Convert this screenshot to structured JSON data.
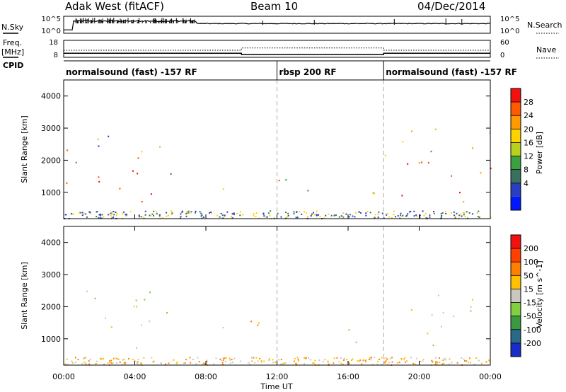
{
  "header": {
    "station": "Adak West (fitACF)",
    "beam": "Beam 10",
    "date": "04/Dec/2014"
  },
  "left_labels": {
    "nsky": "N.Sky",
    "freq_line1": "Freq.",
    "freq_line2": "[MHz]",
    "cpid": "CPID"
  },
  "right_labels": {
    "nsearch": "N.Search",
    "nave": "Nave"
  },
  "noise_panel": {
    "ticks_left": [
      "10^5",
      "10^0"
    ],
    "ticks_right": [
      "10^5",
      "10^0"
    ]
  },
  "freq_panel": {
    "ticks_left": [
      "18",
      "8"
    ],
    "ticks_right": [
      "60",
      "0"
    ],
    "freq_segments": [
      {
        "start_hr": 0.0,
        "end_hr": 10.0,
        "freq_mhz": 10.4
      },
      {
        "start_hr": 10.0,
        "end_hr": 18.0,
        "freq_mhz": 9.6
      },
      {
        "start_hr": 18.0,
        "end_hr": 24.0,
        "freq_mhz": 10.4
      }
    ],
    "nave_segments": [
      {
        "start_hr": 0.0,
        "end_hr": 10.0,
        "nave": 25
      },
      {
        "start_hr": 10.0,
        "end_hr": 18.0,
        "nave": 33
      },
      {
        "start_hr": 18.0,
        "end_hr": 24.0,
        "nave": 25
      }
    ]
  },
  "cpid_segments": [
    {
      "start_hr": 0.0,
      "end_hr": 12.0,
      "label": "normalsound (fast) -157 RF"
    },
    {
      "start_hr": 12.0,
      "end_hr": 18.0,
      "label": "rbsp 200 RF"
    },
    {
      "start_hr": 18.0,
      "end_hr": 24.0,
      "label": "normalsound (fast) -157 RF"
    }
  ],
  "x_axis": {
    "label": "Time UT",
    "ticks": [
      "00:00",
      "04:00",
      "08:00",
      "12:00",
      "16:00",
      "20:00",
      "00:00"
    ],
    "tick_hours": [
      0,
      4,
      8,
      12,
      16,
      20,
      24
    ],
    "range_hr": [
      0,
      24
    ]
  },
  "power_panel": {
    "ylabel": "Slant Range [km]",
    "yticks": [
      "4000",
      "3000",
      "2000",
      "1000"
    ],
    "ytick_values": [
      4000,
      3000,
      2000,
      1000
    ],
    "yrange_km": [
      180,
      4500
    ],
    "colorbar_label": "Power [dB]",
    "colorbar_ticks": [
      "28",
      "24",
      "20",
      "16",
      "12",
      "8",
      "4"
    ],
    "colorbar_colors": [
      "#0018ff",
      "#2a3fbf",
      "#3a7060",
      "#3aa040",
      "#b8d020",
      "#ffd200",
      "#ff9a00",
      "#ff5a00",
      "#f21010"
    ]
  },
  "velocity_panel": {
    "ylabel": "Slant Range [km]",
    "yticks": [
      "4000",
      "3000",
      "2000",
      "1000"
    ],
    "ytick_values": [
      4000,
      3000,
      2000,
      1000
    ],
    "yrange_km": [
      180,
      4500
    ],
    "colorbar_label": "Velocity [m s^-1]",
    "colorbar_ticks": [
      "200",
      "100",
      "50",
      "15",
      "-15",
      "-50",
      "-100",
      "-200"
    ],
    "colorbar_colors": [
      "#1a2cc8",
      "#2a6a88",
      "#3a9a40",
      "#80d040",
      "#c8c8c0",
      "#ffc000",
      "#ff8000",
      "#ff4000",
      "#f21010"
    ]
  },
  "chart_data": {
    "type": "heatmap",
    "title": "Adak West (fitACF)",
    "xlabel": "Time UT",
    "ylabel": "Slant Range [km]",
    "x_range_hr": [
      0,
      24
    ],
    "y_range_km": [
      180,
      4500
    ],
    "panels": [
      {
        "name": "Power [dB]",
        "scatter_regions": [
          {
            "t0": 0.0,
            "t1": 5.2,
            "r0": 700,
            "r1": 2400,
            "level": "high"
          },
          {
            "t0": 0.3,
            "t1": 5.5,
            "r0": 1800,
            "r1": 2900,
            "level": "mixed"
          },
          {
            "t0": 5.3,
            "t1": 6.4,
            "r0": 1000,
            "r1": 2200,
            "level": "low"
          },
          {
            "t0": 8.8,
            "t1": 14.6,
            "r0": 950,
            "r1": 1500,
            "level": "medium"
          },
          {
            "t0": 15.8,
            "t1": 17.8,
            "r0": 900,
            "r1": 1700,
            "level": "medium"
          },
          {
            "t0": 18.0,
            "t1": 24.0,
            "r0": 700,
            "r1": 2100,
            "level": "high"
          },
          {
            "t0": 18.0,
            "t1": 24.0,
            "r0": 1800,
            "r1": 3000,
            "level": "mixed"
          }
        ]
      },
      {
        "name": "Velocity [m s^-1]",
        "scatter_regions": [
          {
            "t0": 0.0,
            "t1": 5.8,
            "r0": 700,
            "r1": 2700,
            "level": "near-zero"
          },
          {
            "t0": 8.8,
            "t1": 14.6,
            "r0": 950,
            "r1": 1600,
            "level": "negative"
          },
          {
            "t0": 15.8,
            "t1": 18.2,
            "r0": 900,
            "r1": 1800,
            "level": "mixed"
          },
          {
            "t0": 16.2,
            "t1": 16.9,
            "r0": 1950,
            "r1": 2150,
            "level": "strong-negative"
          },
          {
            "t0": 18.0,
            "t1": 24.0,
            "r0": 700,
            "r1": 2400,
            "level": "near-zero"
          }
        ]
      }
    ]
  }
}
